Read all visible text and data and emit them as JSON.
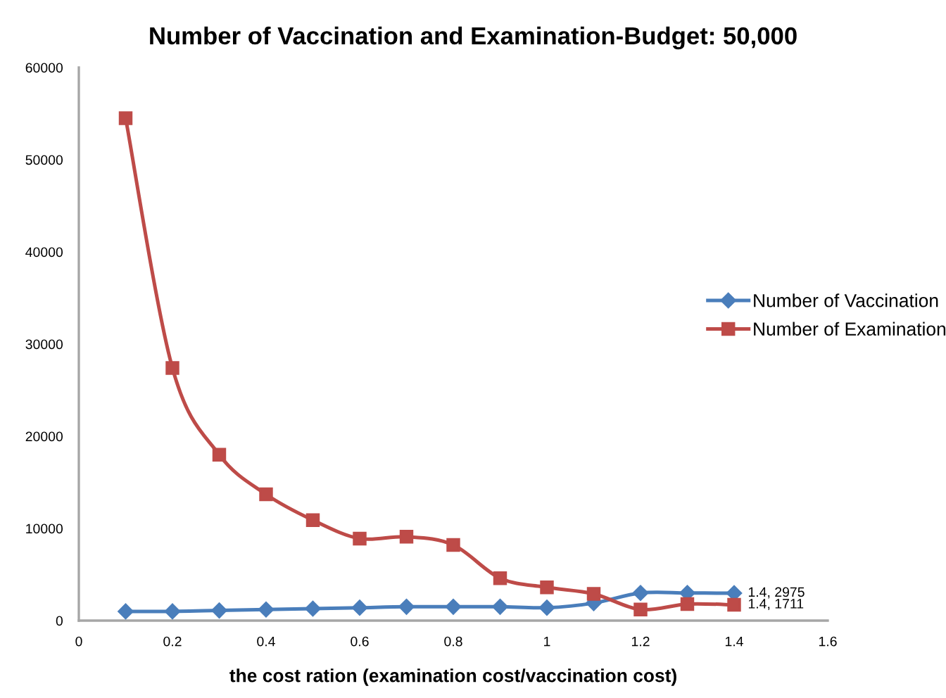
{
  "chart_data": {
    "type": "line",
    "title": "Number of Vaccination and Examination-Budget: 50,000",
    "xlabel": "the cost ration (examination cost/vaccination cost)",
    "x": [
      0.1,
      0.2,
      0.3,
      0.4,
      0.5,
      0.6,
      0.7,
      0.8,
      0.9,
      1.0,
      1.1,
      1.2,
      1.3,
      1.4
    ],
    "series": [
      {
        "name": "Number of Vaccination",
        "color": "#4a7ebb",
        "marker": "diamond",
        "values": [
          1000,
          1000,
          1100,
          1200,
          1300,
          1400,
          1500,
          1500,
          1500,
          1400,
          1900,
          3000,
          3000,
          2975
        ],
        "value_labels": [
          null,
          null,
          null,
          null,
          null,
          null,
          null,
          null,
          null,
          null,
          null,
          null,
          null,
          "1.4, 2975"
        ]
      },
      {
        "name": "Number of Examination",
        "color": "#be4b48",
        "marker": "square",
        "values": [
          54500,
          27400,
          18000,
          13700,
          10900,
          8900,
          9100,
          8200,
          4600,
          3600,
          2900,
          1200,
          1800,
          1711
        ],
        "value_labels": [
          null,
          null,
          null,
          null,
          null,
          null,
          null,
          null,
          null,
          null,
          null,
          null,
          null,
          "1.4, 1711"
        ]
      }
    ],
    "xlim": [
      0,
      1.6
    ],
    "xticks": [
      0,
      0.2,
      0.4,
      0.6,
      0.8,
      1,
      1.2,
      1.4,
      1.6
    ],
    "ylim": [
      0,
      60000
    ],
    "yticks": [
      0,
      10000,
      20000,
      30000,
      40000,
      50000,
      60000
    ],
    "grid": false,
    "legend": "right"
  }
}
